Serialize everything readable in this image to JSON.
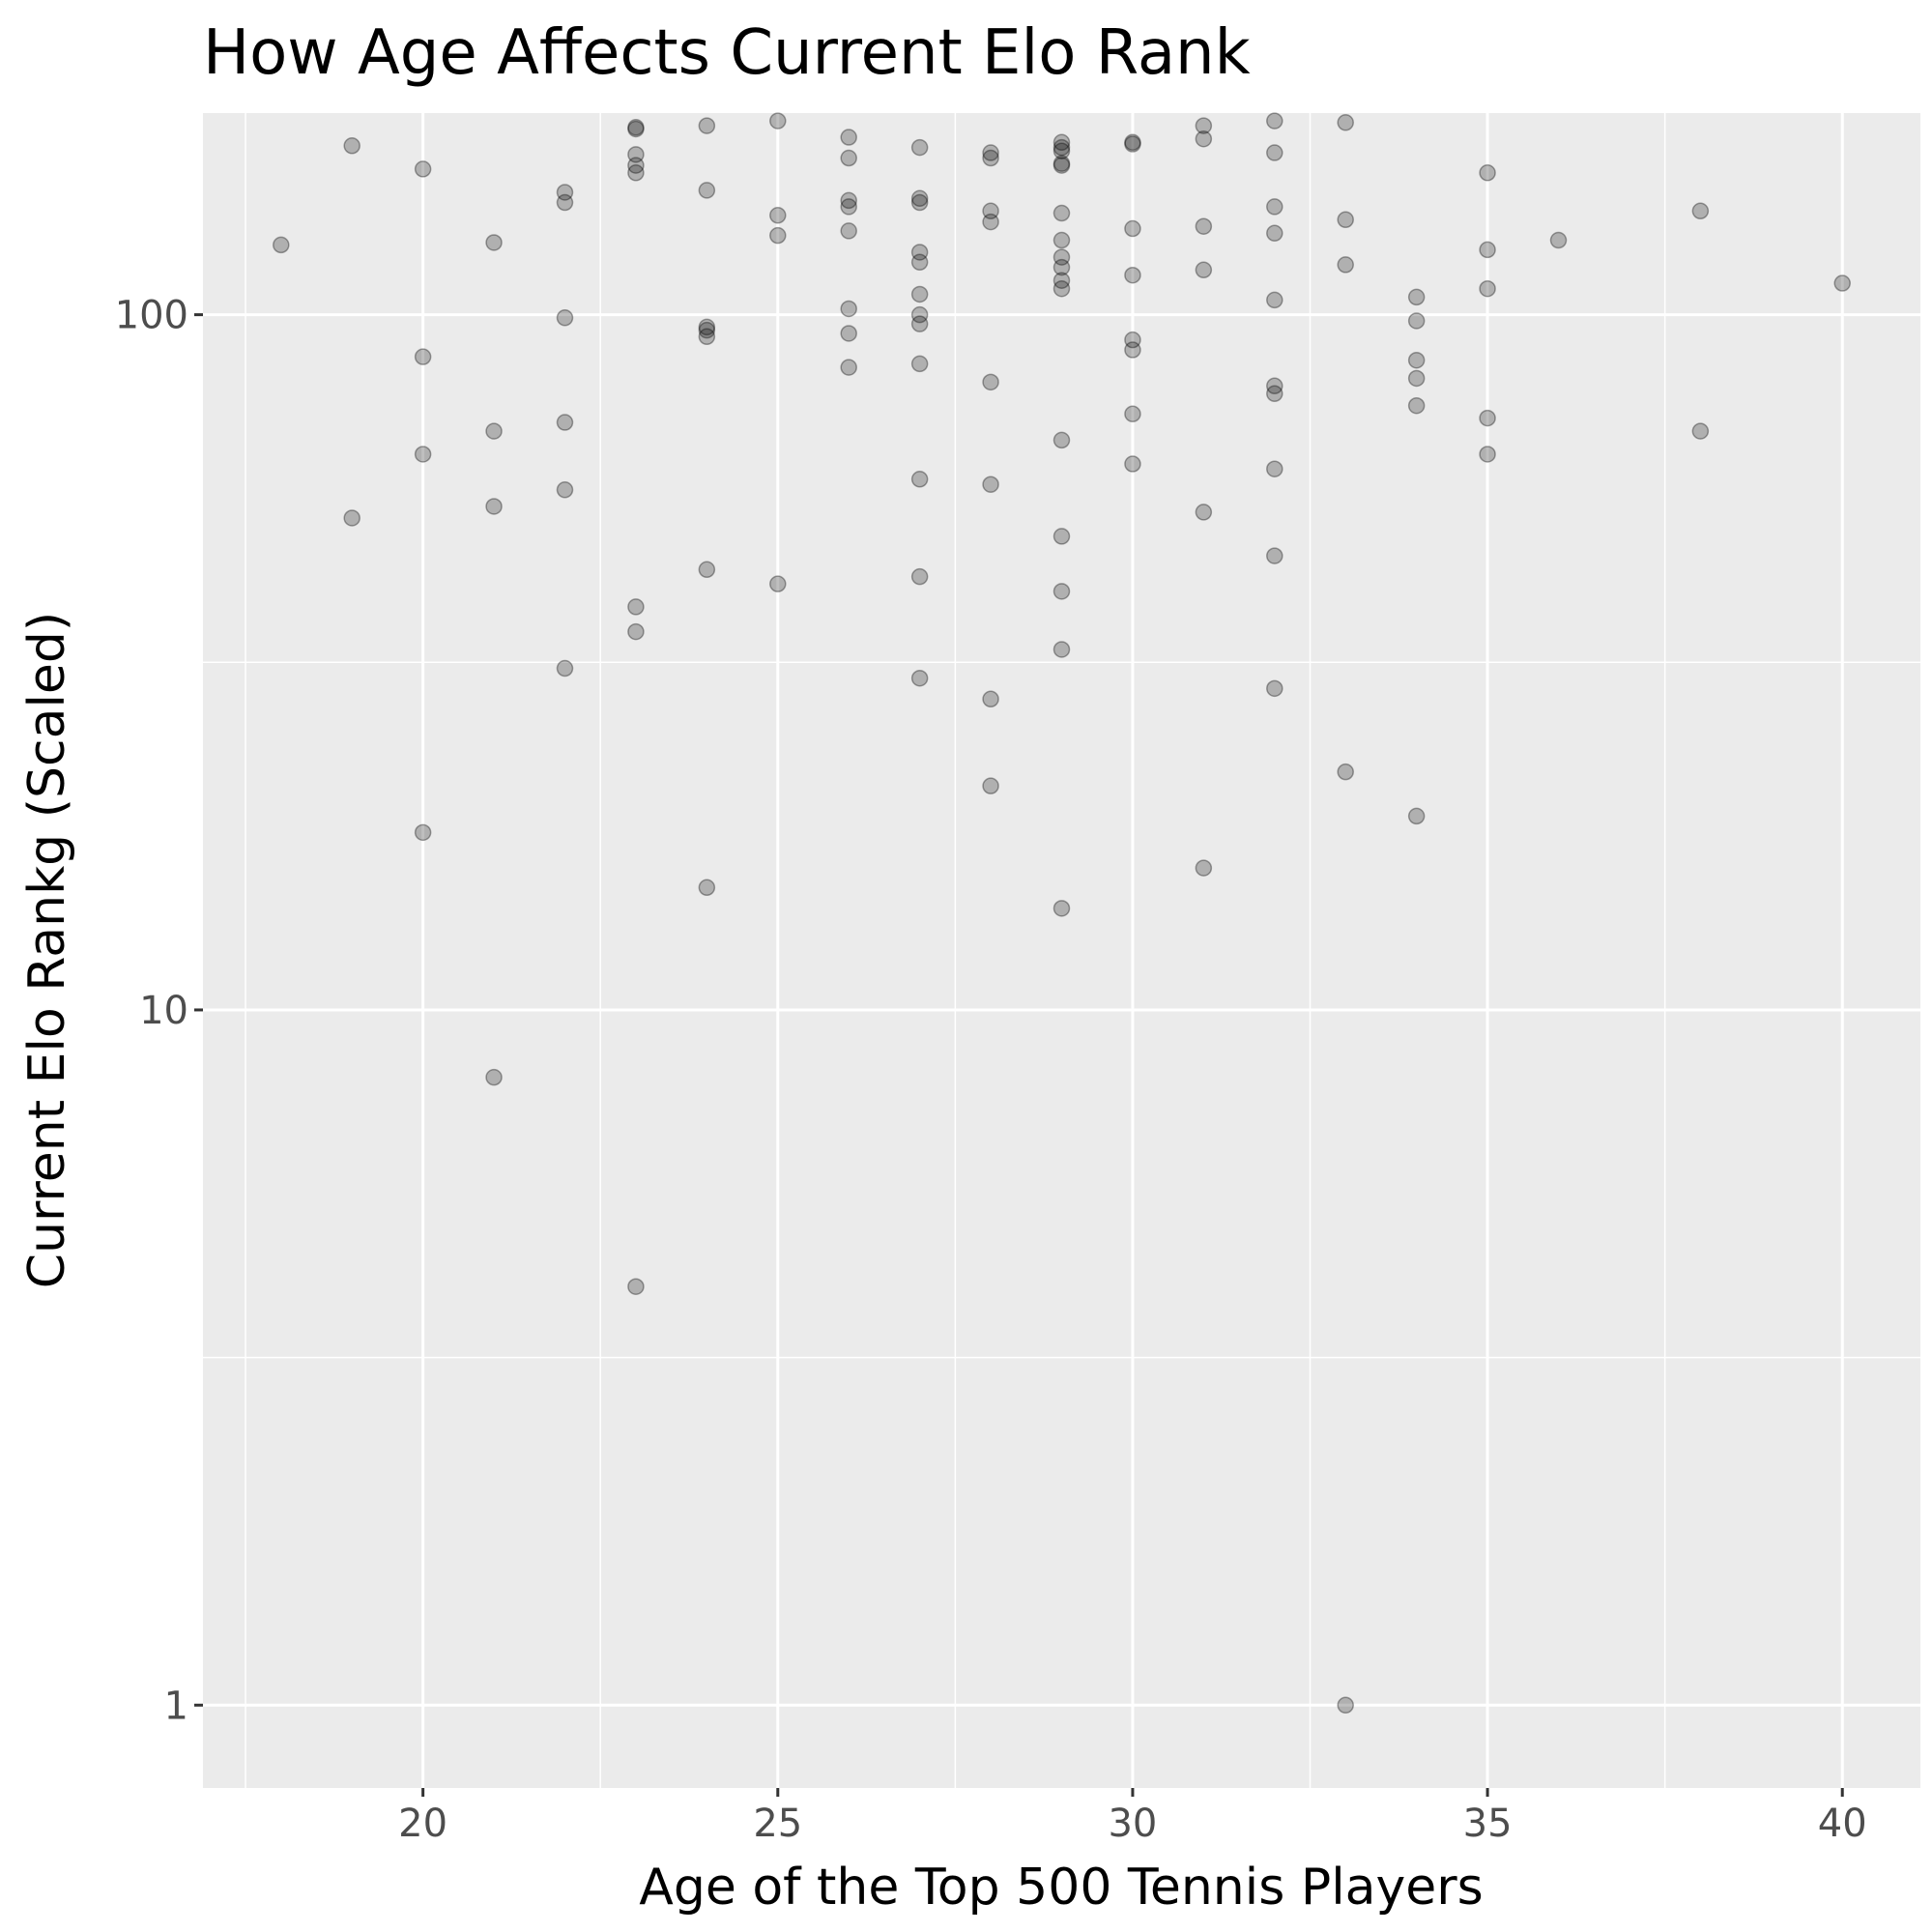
{
  "chart_data": {
    "type": "scatter",
    "title": "How Age Affects Current Elo Rank",
    "xlabel": "Age of the Top 500 Tennis Players",
    "ylabel": "Current Elo Rankg (Scaled)",
    "x_scale": "linear",
    "y_scale": "log10",
    "xlim": [
      16.9,
      41.1
    ],
    "ylim": [
      0.76,
      195
    ],
    "x_ticks": [
      20,
      25,
      30,
      35,
      40
    ],
    "x_tick_labels": [
      "20",
      "25",
      "30",
      "35",
      "40"
    ],
    "y_ticks": [
      1,
      10,
      100
    ],
    "y_tick_labels": [
      "1",
      "10",
      "100"
    ],
    "grid": true,
    "legend": "none",
    "colors": {
      "panel_background": "#ebebeb",
      "grid": "#ffffff",
      "point_fill": "#000000",
      "point_opacity": 0.25
    },
    "points": [
      {
        "x": 18,
        "y": 126
      },
      {
        "x": 19,
        "y": 175
      },
      {
        "x": 19,
        "y": 51
      },
      {
        "x": 20,
        "y": 162
      },
      {
        "x": 20,
        "y": 87
      },
      {
        "x": 20,
        "y": 63
      },
      {
        "x": 20,
        "y": 18
      },
      {
        "x": 21,
        "y": 127
      },
      {
        "x": 21,
        "y": 68
      },
      {
        "x": 21,
        "y": 53
      },
      {
        "x": 21,
        "y": 8
      },
      {
        "x": 22,
        "y": 150
      },
      {
        "x": 22,
        "y": 145
      },
      {
        "x": 22,
        "y": 99
      },
      {
        "x": 22,
        "y": 70
      },
      {
        "x": 22,
        "y": 56
      },
      {
        "x": 22,
        "y": 31
      },
      {
        "x": 23,
        "y": 186
      },
      {
        "x": 23,
        "y": 185
      },
      {
        "x": 23,
        "y": 170
      },
      {
        "x": 23,
        "y": 164
      },
      {
        "x": 23,
        "y": 160
      },
      {
        "x": 23,
        "y": 38
      },
      {
        "x": 23,
        "y": 35
      },
      {
        "x": 23,
        "y": 4
      },
      {
        "x": 24,
        "y": 187
      },
      {
        "x": 24,
        "y": 151
      },
      {
        "x": 24,
        "y": 96
      },
      {
        "x": 24,
        "y": 95
      },
      {
        "x": 24,
        "y": 93
      },
      {
        "x": 24,
        "y": 43
      },
      {
        "x": 24,
        "y": 15
      },
      {
        "x": 25,
        "y": 190
      },
      {
        "x": 25,
        "y": 139
      },
      {
        "x": 25,
        "y": 130
      },
      {
        "x": 25,
        "y": 41
      },
      {
        "x": 26,
        "y": 180
      },
      {
        "x": 26,
        "y": 168
      },
      {
        "x": 26,
        "y": 146
      },
      {
        "x": 26,
        "y": 143
      },
      {
        "x": 26,
        "y": 132
      },
      {
        "x": 26,
        "y": 102
      },
      {
        "x": 26,
        "y": 94
      },
      {
        "x": 26,
        "y": 84
      },
      {
        "x": 27,
        "y": 174
      },
      {
        "x": 27,
        "y": 147
      },
      {
        "x": 27,
        "y": 145
      },
      {
        "x": 27,
        "y": 123
      },
      {
        "x": 27,
        "y": 119
      },
      {
        "x": 27,
        "y": 107
      },
      {
        "x": 27,
        "y": 100
      },
      {
        "x": 27,
        "y": 97
      },
      {
        "x": 27,
        "y": 85
      },
      {
        "x": 27,
        "y": 58
      },
      {
        "x": 27,
        "y": 42
      },
      {
        "x": 27,
        "y": 30
      },
      {
        "x": 28,
        "y": 171
      },
      {
        "x": 28,
        "y": 168
      },
      {
        "x": 28,
        "y": 141
      },
      {
        "x": 28,
        "y": 136
      },
      {
        "x": 28,
        "y": 80
      },
      {
        "x": 28,
        "y": 57
      },
      {
        "x": 28,
        "y": 28
      },
      {
        "x": 28,
        "y": 21
      },
      {
        "x": 29,
        "y": 177
      },
      {
        "x": 29,
        "y": 174
      },
      {
        "x": 29,
        "y": 172
      },
      {
        "x": 29,
        "y": 165
      },
      {
        "x": 29,
        "y": 164
      },
      {
        "x": 29,
        "y": 140
      },
      {
        "x": 29,
        "y": 128
      },
      {
        "x": 29,
        "y": 121
      },
      {
        "x": 29,
        "y": 117
      },
      {
        "x": 29,
        "y": 112
      },
      {
        "x": 29,
        "y": 109
      },
      {
        "x": 29,
        "y": 66
      },
      {
        "x": 29,
        "y": 48
      },
      {
        "x": 29,
        "y": 40
      },
      {
        "x": 29,
        "y": 33
      },
      {
        "x": 29,
        "y": 14
      },
      {
        "x": 30,
        "y": 177
      },
      {
        "x": 30,
        "y": 176
      },
      {
        "x": 30,
        "y": 133
      },
      {
        "x": 30,
        "y": 114
      },
      {
        "x": 30,
        "y": 92
      },
      {
        "x": 30,
        "y": 89
      },
      {
        "x": 30,
        "y": 72
      },
      {
        "x": 30,
        "y": 61
      },
      {
        "x": 31,
        "y": 187
      },
      {
        "x": 31,
        "y": 179
      },
      {
        "x": 31,
        "y": 134
      },
      {
        "x": 31,
        "y": 116
      },
      {
        "x": 31,
        "y": 52
      },
      {
        "x": 31,
        "y": 16
      },
      {
        "x": 32,
        "y": 190
      },
      {
        "x": 32,
        "y": 171
      },
      {
        "x": 32,
        "y": 143
      },
      {
        "x": 32,
        "y": 131
      },
      {
        "x": 32,
        "y": 105
      },
      {
        "x": 32,
        "y": 79
      },
      {
        "x": 32,
        "y": 77
      },
      {
        "x": 32,
        "y": 60
      },
      {
        "x": 32,
        "y": 45
      },
      {
        "x": 32,
        "y": 29
      },
      {
        "x": 33,
        "y": 189
      },
      {
        "x": 33,
        "y": 137
      },
      {
        "x": 33,
        "y": 118
      },
      {
        "x": 33,
        "y": 22
      },
      {
        "x": 33,
        "y": 1
      },
      {
        "x": 34,
        "y": 106
      },
      {
        "x": 34,
        "y": 98
      },
      {
        "x": 34,
        "y": 86
      },
      {
        "x": 34,
        "y": 81
      },
      {
        "x": 34,
        "y": 74
      },
      {
        "x": 34,
        "y": 19
      },
      {
        "x": 35,
        "y": 160
      },
      {
        "x": 35,
        "y": 124
      },
      {
        "x": 35,
        "y": 109
      },
      {
        "x": 35,
        "y": 71
      },
      {
        "x": 35,
        "y": 63
      },
      {
        "x": 36,
        "y": 128
      },
      {
        "x": 38,
        "y": 141
      },
      {
        "x": 38,
        "y": 68
      },
      {
        "x": 40,
        "y": 111
      }
    ]
  }
}
